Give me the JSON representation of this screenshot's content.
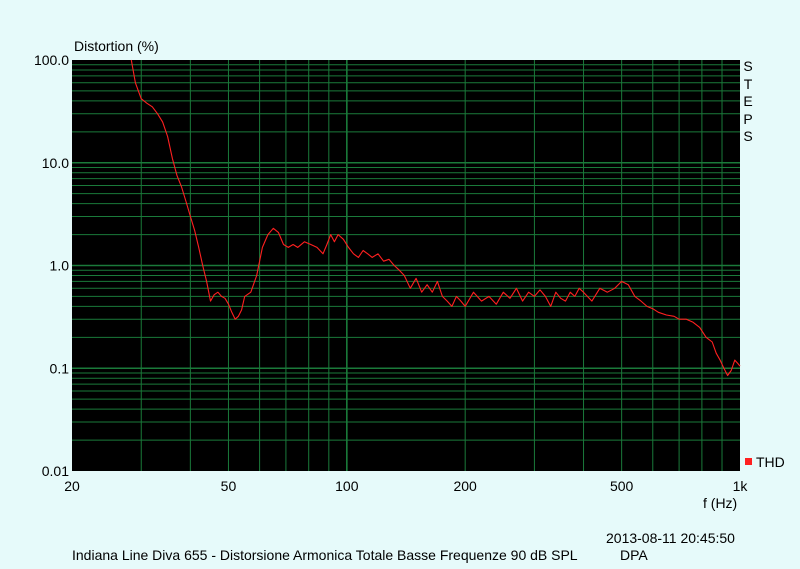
{
  "chart_data": {
    "type": "line",
    "y_axis_title": "Distortion (%)",
    "x_axis_title": "f (Hz)",
    "x_scale": "log",
    "y_scale": "log",
    "xlim": [
      20,
      1000
    ],
    "ylim": [
      0.01,
      100
    ],
    "x_ticks": [
      {
        "value": 20,
        "label": "20"
      },
      {
        "value": 50,
        "label": "50"
      },
      {
        "value": 100,
        "label": "100"
      },
      {
        "value": 200,
        "label": "200"
      },
      {
        "value": 500,
        "label": "500"
      },
      {
        "value": 1000,
        "label": "1k"
      }
    ],
    "y_ticks": [
      {
        "value": 100,
        "label": "100.0"
      },
      {
        "value": 10,
        "label": "10.0"
      },
      {
        "value": 1,
        "label": "1.0"
      },
      {
        "value": 0.1,
        "label": "0.1"
      },
      {
        "value": 0.01,
        "label": "0.01"
      }
    ],
    "side_text": "STEPS",
    "grid": true,
    "legend_position": "bottom-right",
    "background_color": "#000000",
    "grid_color": "#1a7a3a",
    "series": [
      {
        "name": "THD",
        "color": "#ff2020",
        "points": [
          [
            28.3,
            100
          ],
          [
            29,
            60
          ],
          [
            30,
            42
          ],
          [
            31,
            38
          ],
          [
            32,
            35
          ],
          [
            33,
            30
          ],
          [
            34,
            25
          ],
          [
            35,
            18
          ],
          [
            36,
            11
          ],
          [
            37,
            7.5
          ],
          [
            38,
            5.8
          ],
          [
            39,
            4.2
          ],
          [
            40,
            3.0
          ],
          [
            41,
            2.2
          ],
          [
            42,
            1.5
          ],
          [
            43,
            1.0
          ],
          [
            44,
            0.7
          ],
          [
            45,
            0.45
          ],
          [
            46,
            0.52
          ],
          [
            47,
            0.55
          ],
          [
            48,
            0.5
          ],
          [
            49,
            0.48
          ],
          [
            50,
            0.42
          ],
          [
            51,
            0.35
          ],
          [
            52,
            0.3
          ],
          [
            53,
            0.32
          ],
          [
            54,
            0.37
          ],
          [
            55,
            0.5
          ],
          [
            57,
            0.55
          ],
          [
            59,
            0.8
          ],
          [
            61,
            1.5
          ],
          [
            63,
            2.0
          ],
          [
            65,
            2.3
          ],
          [
            67,
            2.1
          ],
          [
            69,
            1.6
          ],
          [
            71,
            1.5
          ],
          [
            73,
            1.6
          ],
          [
            75,
            1.5
          ],
          [
            78,
            1.7
          ],
          [
            81,
            1.6
          ],
          [
            84,
            1.5
          ],
          [
            87,
            1.3
          ],
          [
            89,
            1.6
          ],
          [
            91,
            2.0
          ],
          [
            93,
            1.7
          ],
          [
            95,
            2.0
          ],
          [
            98,
            1.8
          ],
          [
            101,
            1.5
          ],
          [
            104,
            1.3
          ],
          [
            107,
            1.2
          ],
          [
            110,
            1.4
          ],
          [
            113,
            1.3
          ],
          [
            116,
            1.2
          ],
          [
            120,
            1.3
          ],
          [
            124,
            1.1
          ],
          [
            128,
            1.15
          ],
          [
            132,
            1.0
          ],
          [
            136,
            0.9
          ],
          [
            140,
            0.8
          ],
          [
            145,
            0.6
          ],
          [
            150,
            0.75
          ],
          [
            155,
            0.55
          ],
          [
            160,
            0.65
          ],
          [
            165,
            0.55
          ],
          [
            170,
            0.7
          ],
          [
            175,
            0.5
          ],
          [
            180,
            0.45
          ],
          [
            185,
            0.4
          ],
          [
            190,
            0.5
          ],
          [
            195,
            0.45
          ],
          [
            200,
            0.4
          ],
          [
            210,
            0.55
          ],
          [
            220,
            0.45
          ],
          [
            230,
            0.5
          ],
          [
            240,
            0.42
          ],
          [
            250,
            0.55
          ],
          [
            260,
            0.48
          ],
          [
            270,
            0.6
          ],
          [
            280,
            0.45
          ],
          [
            290,
            0.55
          ],
          [
            300,
            0.5
          ],
          [
            310,
            0.58
          ],
          [
            320,
            0.5
          ],
          [
            330,
            0.4
          ],
          [
            340,
            0.55
          ],
          [
            350,
            0.48
          ],
          [
            360,
            0.45
          ],
          [
            370,
            0.55
          ],
          [
            380,
            0.5
          ],
          [
            390,
            0.6
          ],
          [
            400,
            0.55
          ],
          [
            420,
            0.45
          ],
          [
            440,
            0.6
          ],
          [
            460,
            0.55
          ],
          [
            480,
            0.6
          ],
          [
            500,
            0.7
          ],
          [
            520,
            0.65
          ],
          [
            540,
            0.5
          ],
          [
            560,
            0.45
          ],
          [
            580,
            0.4
          ],
          [
            600,
            0.38
          ],
          [
            620,
            0.35
          ],
          [
            650,
            0.33
          ],
          [
            680,
            0.32
          ],
          [
            700,
            0.3
          ],
          [
            730,
            0.3
          ],
          [
            760,
            0.28
          ],
          [
            790,
            0.25
          ],
          [
            820,
            0.2
          ],
          [
            850,
            0.18
          ],
          [
            870,
            0.14
          ],
          [
            890,
            0.12
          ],
          [
            910,
            0.1
          ],
          [
            930,
            0.085
          ],
          [
            950,
            0.095
          ],
          [
            970,
            0.12
          ],
          [
            990,
            0.11
          ],
          [
            1000,
            0.105
          ]
        ]
      }
    ]
  },
  "footer": {
    "timestamp": "2013-08-11 20:45:50",
    "caption": "Indiana Line Diva 655 - Distorsione Armonica Totale Basse Frequenze 90 dB SPL",
    "source": "DPA"
  }
}
